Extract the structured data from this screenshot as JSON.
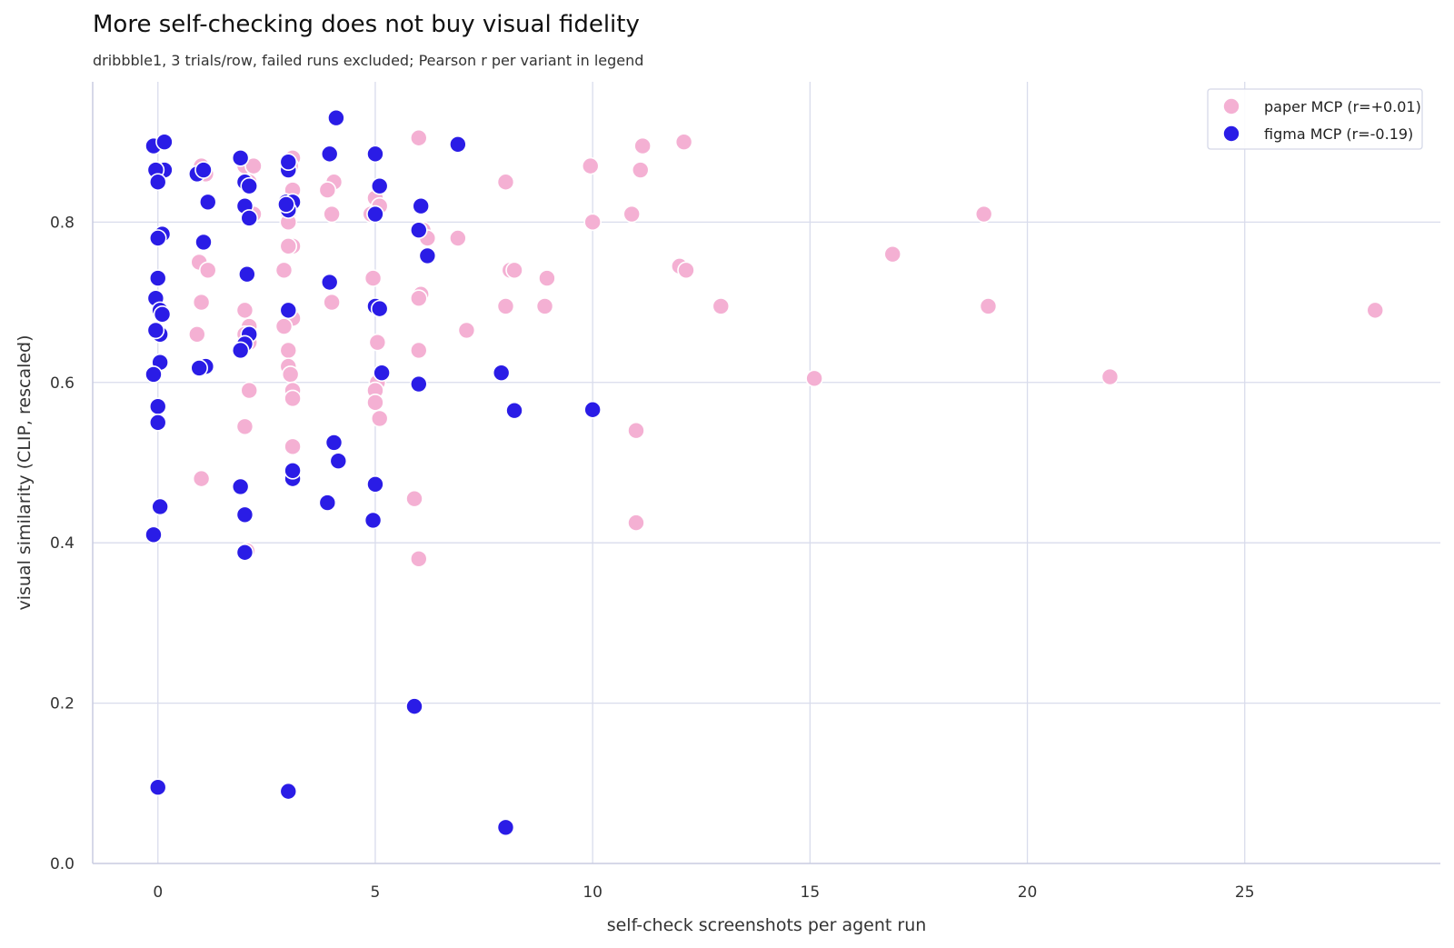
{
  "chart_data": {
    "type": "scatter",
    "title": "More self-checking does not buy visual fidelity",
    "subtitle": "dribbble1, 3 trials/row, failed runs excluded; Pearson r per variant in legend",
    "xlabel": "self-check screenshots per agent run",
    "ylabel": "visual similarity (CLIP, rescaled)",
    "xlim": [
      -1.5,
      29.5
    ],
    "ylim": [
      0.0,
      0.975
    ],
    "xticks": [
      0,
      5,
      10,
      15,
      20,
      25
    ],
    "yticks": [
      0.0,
      0.2,
      0.4,
      0.6,
      0.8
    ],
    "xtick_labels": [
      "0",
      "5",
      "10",
      "15",
      "20",
      "25"
    ],
    "ytick_labels": [
      "0.0",
      "0.2",
      "0.4",
      "0.6",
      "0.8"
    ],
    "grid": true,
    "legend_position": "top-right",
    "series": [
      {
        "name": "paper MCP (r=+0.01)",
        "color": "#f4b0d3",
        "points": [
          [
            1.0,
            0.87
          ],
          [
            1.1,
            0.86
          ],
          [
            0.95,
            0.75
          ],
          [
            1.15,
            0.74
          ],
          [
            1.0,
            0.7
          ],
          [
            0.9,
            0.66
          ],
          [
            1.0,
            0.48
          ],
          [
            2.0,
            0.87
          ],
          [
            2.2,
            0.87
          ],
          [
            2.1,
            0.85
          ],
          [
            2.0,
            0.82
          ],
          [
            2.2,
            0.81
          ],
          [
            2.0,
            0.69
          ],
          [
            2.1,
            0.67
          ],
          [
            2.0,
            0.66
          ],
          [
            2.1,
            0.65
          ],
          [
            2.1,
            0.59
          ],
          [
            2.0,
            0.545
          ],
          [
            2.05,
            0.39
          ],
          [
            3.1,
            0.88
          ],
          [
            3.05,
            0.87
          ],
          [
            3.1,
            0.84
          ],
          [
            3.0,
            0.81
          ],
          [
            3.0,
            0.8
          ],
          [
            3.1,
            0.77
          ],
          [
            3.0,
            0.77
          ],
          [
            2.9,
            0.74
          ],
          [
            3.1,
            0.68
          ],
          [
            2.9,
            0.67
          ],
          [
            3.0,
            0.64
          ],
          [
            3.0,
            0.62
          ],
          [
            3.05,
            0.61
          ],
          [
            3.1,
            0.59
          ],
          [
            3.1,
            0.58
          ],
          [
            3.1,
            0.52
          ],
          [
            4.05,
            0.85
          ],
          [
            3.9,
            0.84
          ],
          [
            4.0,
            0.81
          ],
          [
            4.0,
            0.7
          ],
          [
            5.0,
            0.83
          ],
          [
            5.1,
            0.82
          ],
          [
            4.9,
            0.81
          ],
          [
            4.95,
            0.73
          ],
          [
            5.05,
            0.65
          ],
          [
            5.05,
            0.6
          ],
          [
            5.0,
            0.59
          ],
          [
            5.0,
            0.575
          ],
          [
            5.1,
            0.555
          ],
          [
            6.0,
            0.905
          ],
          [
            6.1,
            0.79
          ],
          [
            6.2,
            0.78
          ],
          [
            6.05,
            0.71
          ],
          [
            6.0,
            0.705
          ],
          [
            6.0,
            0.64
          ],
          [
            5.9,
            0.455
          ],
          [
            6.0,
            0.38
          ],
          [
            6.9,
            0.78
          ],
          [
            7.1,
            0.665
          ],
          [
            8.0,
            0.85
          ],
          [
            8.1,
            0.74
          ],
          [
            8.2,
            0.74
          ],
          [
            8.0,
            0.695
          ],
          [
            8.95,
            0.73
          ],
          [
            8.9,
            0.695
          ],
          [
            9.95,
            0.87
          ],
          [
            10.0,
            0.8
          ],
          [
            11.15,
            0.895
          ],
          [
            11.1,
            0.865
          ],
          [
            10.9,
            0.81
          ],
          [
            11.0,
            0.54
          ],
          [
            11.0,
            0.425
          ],
          [
            12.1,
            0.9
          ],
          [
            12.0,
            0.745
          ],
          [
            12.15,
            0.74
          ],
          [
            12.95,
            0.695
          ],
          [
            15.1,
            0.605
          ],
          [
            16.9,
            0.76
          ],
          [
            19.0,
            0.81
          ],
          [
            19.1,
            0.695
          ],
          [
            21.9,
            0.607
          ],
          [
            28.0,
            0.69
          ]
        ]
      },
      {
        "name": "figma MCP (r=-0.19)",
        "color": "#2a1ce6",
        "points": [
          [
            -0.1,
            0.895
          ],
          [
            0.15,
            0.9
          ],
          [
            0.15,
            0.865
          ],
          [
            -0.05,
            0.865
          ],
          [
            0.0,
            0.85
          ],
          [
            0.1,
            0.785
          ],
          [
            0.0,
            0.78
          ],
          [
            0.0,
            0.73
          ],
          [
            -0.05,
            0.705
          ],
          [
            0.05,
            0.69
          ],
          [
            0.1,
            0.685
          ],
          [
            0.05,
            0.66
          ],
          [
            -0.05,
            0.665
          ],
          [
            0.05,
            0.625
          ],
          [
            -0.1,
            0.61
          ],
          [
            0.0,
            0.57
          ],
          [
            0.0,
            0.55
          ],
          [
            0.05,
            0.445
          ],
          [
            -0.1,
            0.41
          ],
          [
            0.0,
            0.095
          ],
          [
            0.9,
            0.86
          ],
          [
            1.05,
            0.865
          ],
          [
            1.15,
            0.825
          ],
          [
            1.05,
            0.775
          ],
          [
            1.1,
            0.62
          ],
          [
            0.95,
            0.618
          ],
          [
            1.9,
            0.88
          ],
          [
            2.0,
            0.85
          ],
          [
            2.1,
            0.845
          ],
          [
            2.0,
            0.82
          ],
          [
            2.1,
            0.805
          ],
          [
            2.05,
            0.735
          ],
          [
            2.1,
            0.66
          ],
          [
            2.0,
            0.648
          ],
          [
            1.9,
            0.64
          ],
          [
            1.9,
            0.47
          ],
          [
            2.0,
            0.435
          ],
          [
            2.0,
            0.388
          ],
          [
            3.0,
            0.865
          ],
          [
            3.0,
            0.875
          ],
          [
            2.95,
            0.825
          ],
          [
            3.1,
            0.825
          ],
          [
            3.0,
            0.815
          ],
          [
            2.95,
            0.822
          ],
          [
            3.0,
            0.69
          ],
          [
            3.1,
            0.48
          ],
          [
            3.1,
            0.49
          ],
          [
            3.0,
            0.09
          ],
          [
            4.1,
            0.93
          ],
          [
            3.95,
            0.885
          ],
          [
            3.95,
            0.725
          ],
          [
            4.05,
            0.525
          ],
          [
            4.15,
            0.502
          ],
          [
            3.9,
            0.45
          ],
          [
            5.0,
            0.885
          ],
          [
            5.1,
            0.845
          ],
          [
            5.0,
            0.81
          ],
          [
            5.0,
            0.695
          ],
          [
            5.1,
            0.692
          ],
          [
            5.15,
            0.612
          ],
          [
            5.0,
            0.473
          ],
          [
            4.95,
            0.428
          ],
          [
            6.05,
            0.82
          ],
          [
            6.0,
            0.79
          ],
          [
            6.2,
            0.758
          ],
          [
            6.0,
            0.598
          ],
          [
            5.9,
            0.196
          ],
          [
            6.9,
            0.897
          ],
          [
            7.9,
            0.612
          ],
          [
            8.2,
            0.565
          ],
          [
            8.0,
            0.045
          ],
          [
            10.0,
            0.566
          ]
        ]
      }
    ]
  }
}
